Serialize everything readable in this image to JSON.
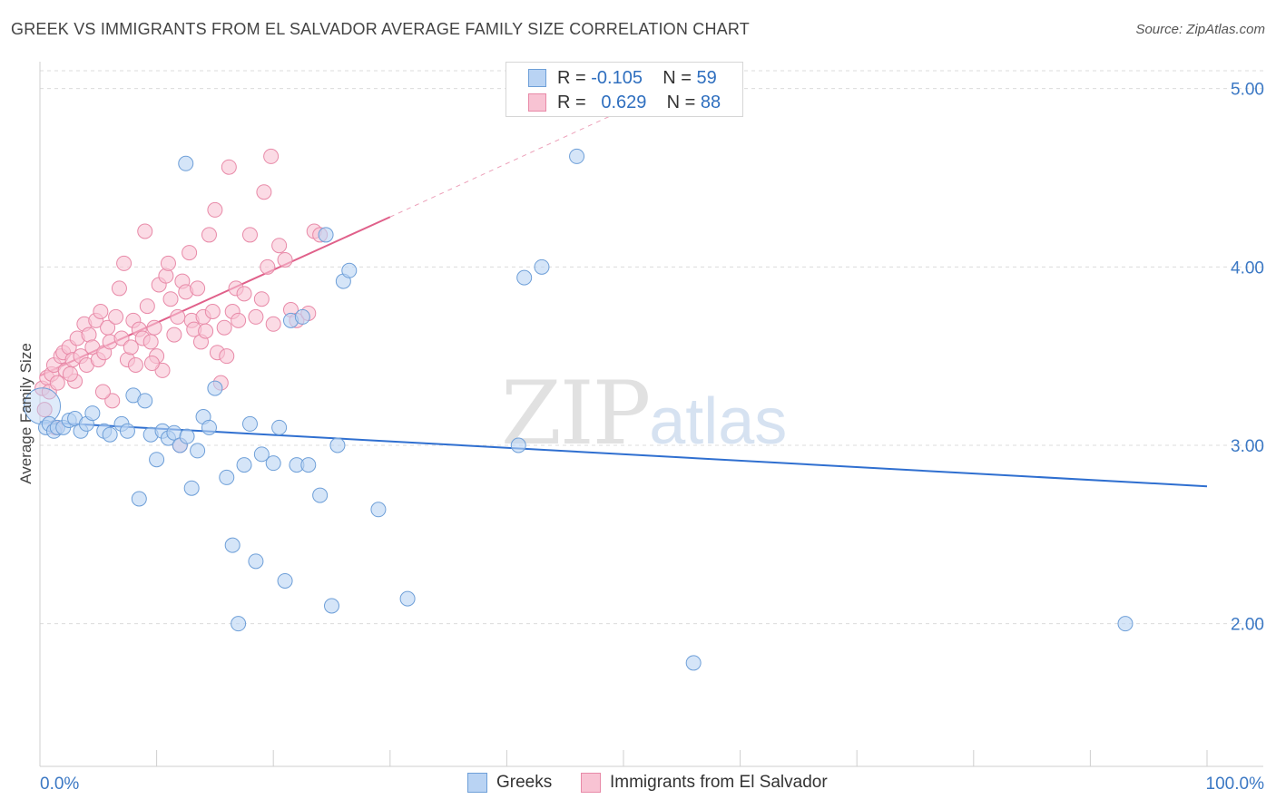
{
  "title": "GREEK VS IMMIGRANTS FROM EL SALVADOR AVERAGE FAMILY SIZE CORRELATION CHART",
  "source": "Source: ZipAtlas.com",
  "watermark": {
    "zip": "ZIP",
    "atlas": "atlas"
  },
  "legend": {
    "greeks": {
      "r_label": "R = ",
      "r_value": "-0.105",
      "n_label": "N = ",
      "n_value": "59"
    },
    "salvador": {
      "r_label": "R = ",
      "r_value": "0.629",
      "n_label": "N = ",
      "n_value": "88"
    }
  },
  "bottom_legend": {
    "greeks": "Greeks",
    "salvador": "Immigrants from El Salvador"
  },
  "colors": {
    "greeks_fill": "#b9d3f3",
    "greeks_stroke": "#6e9fd8",
    "greeks_line": "#2f6fd0",
    "salvador_fill": "#f8c3d3",
    "salvador_stroke": "#e88aa8",
    "salvador_line": "#e0608a",
    "tick_text": "#3b78c4",
    "grid": "#dcdcdc"
  },
  "chart_data": {
    "type": "scatter",
    "xlabel": "",
    "ylabel": "Average Family Size",
    "xlim": [
      0,
      100
    ],
    "ylim": [
      1.2,
      5.1
    ],
    "y_ticks": [
      2.0,
      3.0,
      4.0,
      5.0
    ],
    "y_tick_labels": [
      "2.00",
      "3.00",
      "4.00",
      "5.00"
    ],
    "x_tick_labels": [
      "0.0%",
      "100.0%"
    ],
    "series": [
      {
        "name": "Greeks",
        "trend": {
          "x": [
            0,
            100
          ],
          "y": [
            3.13,
            2.77
          ]
        },
        "points": [
          [
            0.2,
            3.22
          ],
          [
            0.5,
            3.1
          ],
          [
            0.8,
            3.12
          ],
          [
            1.2,
            3.08
          ],
          [
            1.5,
            3.1
          ],
          [
            2,
            3.1
          ],
          [
            2.5,
            3.14
          ],
          [
            3,
            3.15
          ],
          [
            3.5,
            3.08
          ],
          [
            4,
            3.12
          ],
          [
            4.5,
            3.18
          ],
          [
            5.5,
            3.08
          ],
          [
            6,
            3.06
          ],
          [
            7,
            3.12
          ],
          [
            7.5,
            3.08
          ],
          [
            8,
            3.28
          ],
          [
            9,
            3.25
          ],
          [
            9.5,
            3.06
          ],
          [
            10,
            2.92
          ],
          [
            10.5,
            3.08
          ],
          [
            11,
            3.04
          ],
          [
            11.5,
            3.07
          ],
          [
            12,
            3.0
          ],
          [
            12.5,
            4.58
          ],
          [
            13,
            2.76
          ],
          [
            13.5,
            2.97
          ],
          [
            14,
            3.16
          ],
          [
            14.5,
            3.1
          ],
          [
            15,
            3.32
          ],
          [
            16,
            2.82
          ],
          [
            16.5,
            2.44
          ],
          [
            17,
            2.0
          ],
          [
            17.5,
            2.89
          ],
          [
            18,
            3.12
          ],
          [
            18.5,
            2.35
          ],
          [
            19,
            2.95
          ],
          [
            20,
            2.9
          ],
          [
            20.5,
            3.1
          ],
          [
            21,
            2.24
          ],
          [
            21.5,
            3.7
          ],
          [
            22,
            2.89
          ],
          [
            22.5,
            3.72
          ],
          [
            23,
            2.89
          ],
          [
            24,
            2.72
          ],
          [
            24.5,
            4.18
          ],
          [
            25,
            2.1
          ],
          [
            25.5,
            3.0
          ],
          [
            26,
            3.92
          ],
          [
            26.5,
            3.98
          ],
          [
            29,
            2.64
          ],
          [
            31.5,
            2.14
          ],
          [
            41,
            3.0
          ],
          [
            41.5,
            3.94
          ],
          [
            43,
            4.0
          ],
          [
            46,
            4.62
          ],
          [
            56,
            1.78
          ],
          [
            93,
            2.0
          ],
          [
            8.5,
            2.7
          ],
          [
            12.6,
            3.05
          ]
        ]
      },
      {
        "name": "Immigrants from El Salvador",
        "trend": {
          "x": [
            0,
            30
          ],
          "y": [
            3.39,
            4.28
          ]
        },
        "trend_ext": {
          "x": [
            30,
            50
          ],
          "y": [
            4.28,
            4.88
          ]
        },
        "points": [
          [
            0.2,
            3.32
          ],
          [
            0.4,
            3.2
          ],
          [
            0.6,
            3.38
          ],
          [
            0.8,
            3.3
          ],
          [
            1.0,
            3.4
          ],
          [
            1.2,
            3.45
          ],
          [
            1.5,
            3.35
          ],
          [
            1.8,
            3.5
          ],
          [
            2,
            3.52
          ],
          [
            2.2,
            3.42
          ],
          [
            2.5,
            3.55
          ],
          [
            2.8,
            3.48
          ],
          [
            3,
            3.36
          ],
          [
            3.2,
            3.6
          ],
          [
            3.5,
            3.5
          ],
          [
            3.8,
            3.68
          ],
          [
            4,
            3.45
          ],
          [
            4.2,
            3.62
          ],
          [
            4.5,
            3.55
          ],
          [
            4.8,
            3.7
          ],
          [
            5,
            3.48
          ],
          [
            5.2,
            3.75
          ],
          [
            5.5,
            3.52
          ],
          [
            5.8,
            3.66
          ],
          [
            6,
            3.58
          ],
          [
            6.2,
            3.25
          ],
          [
            6.5,
            3.72
          ],
          [
            6.8,
            3.88
          ],
          [
            7,
            3.6
          ],
          [
            7.2,
            4.02
          ],
          [
            7.5,
            3.48
          ],
          [
            7.8,
            3.55
          ],
          [
            8,
            3.7
          ],
          [
            8.2,
            3.45
          ],
          [
            8.5,
            3.65
          ],
          [
            8.8,
            3.6
          ],
          [
            9,
            4.2
          ],
          [
            9.2,
            3.78
          ],
          [
            9.5,
            3.58
          ],
          [
            9.8,
            3.66
          ],
          [
            10,
            3.5
          ],
          [
            10.2,
            3.9
          ],
          [
            10.5,
            3.42
          ],
          [
            10.8,
            3.95
          ],
          [
            11,
            4.02
          ],
          [
            11.2,
            3.82
          ],
          [
            11.5,
            3.62
          ],
          [
            11.8,
            3.72
          ],
          [
            12,
            3.0
          ],
          [
            12.2,
            3.92
          ],
          [
            12.5,
            3.86
          ],
          [
            12.8,
            4.08
          ],
          [
            13,
            3.7
          ],
          [
            13.2,
            3.65
          ],
          [
            13.5,
            3.88
          ],
          [
            13.8,
            3.58
          ],
          [
            14,
            3.72
          ],
          [
            14.2,
            3.64
          ],
          [
            14.5,
            4.18
          ],
          [
            14.8,
            3.75
          ],
          [
            15,
            4.32
          ],
          [
            15.2,
            3.52
          ],
          [
            15.5,
            3.35
          ],
          [
            15.8,
            3.66
          ],
          [
            16,
            3.5
          ],
          [
            16.2,
            4.56
          ],
          [
            16.5,
            3.75
          ],
          [
            16.8,
            3.88
          ],
          [
            17,
            3.7
          ],
          [
            17.5,
            3.85
          ],
          [
            18,
            4.18
          ],
          [
            18.5,
            3.72
          ],
          [
            19,
            3.82
          ],
          [
            19.2,
            4.42
          ],
          [
            19.5,
            4.0
          ],
          [
            19.8,
            4.62
          ],
          [
            20,
            3.68
          ],
          [
            20.5,
            4.12
          ],
          [
            21,
            4.04
          ],
          [
            21.5,
            3.76
          ],
          [
            22,
            3.7
          ],
          [
            23,
            3.74
          ],
          [
            23.5,
            4.2
          ],
          [
            24,
            4.18
          ],
          [
            1.3,
            3.1
          ],
          [
            2.6,
            3.4
          ],
          [
            9.6,
            3.46
          ],
          [
            5.4,
            3.3
          ]
        ]
      }
    ]
  }
}
